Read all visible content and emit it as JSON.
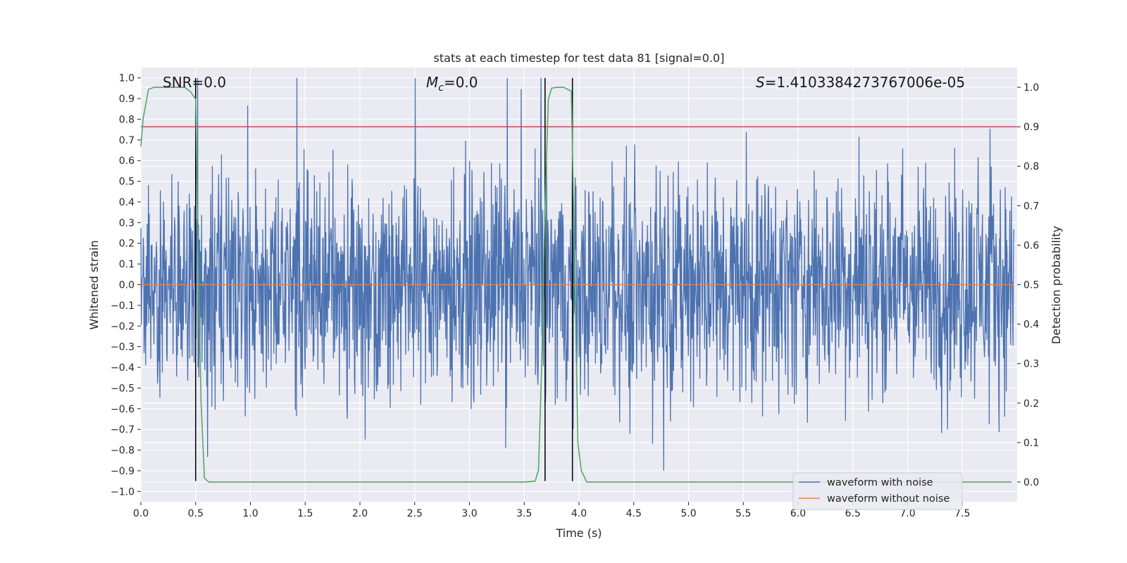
{
  "chart_data": {
    "type": "line",
    "title": "stats at each timestep for test data 81 [signal=0.0]",
    "xlabel": "Time (s)",
    "ylabel": "Whitened strain",
    "y2label": "Detection probability",
    "xlim": [
      0.0,
      8.0
    ],
    "ylim": [
      -1.05,
      1.05
    ],
    "y2lim": [
      -0.05,
      1.05
    ],
    "xticks": [
      0.0,
      0.5,
      1.0,
      1.5,
      2.0,
      2.5,
      3.0,
      3.5,
      4.0,
      4.5,
      5.0,
      5.5,
      6.0,
      6.5,
      7.0,
      7.5
    ],
    "xtick_labels": [
      "0.0",
      "0.5",
      "1.0",
      "1.5",
      "2.0",
      "2.5",
      "3.0",
      "3.5",
      "4.0",
      "4.5",
      "5.0",
      "5.5",
      "6.0",
      "6.5",
      "7.0",
      "7.5"
    ],
    "yticks": [
      1.0,
      0.9,
      0.8,
      0.7,
      0.6,
      0.5,
      0.4,
      0.3,
      0.2,
      0.1,
      0.0,
      -0.1,
      -0.2,
      -0.3,
      -0.4,
      -0.5,
      -0.6,
      -0.7,
      -0.8,
      -0.9,
      -1.0
    ],
    "ytick_labels": [
      "1.0",
      "0.9",
      "0.8",
      "0.7",
      "0.6",
      "0.5",
      "0.4",
      "0.3",
      "0.2",
      "0.1",
      "0.0",
      "−0.1",
      "−0.2",
      "−0.3",
      "−0.4",
      "−0.5",
      "−0.6",
      "−0.7",
      "−0.8",
      "−0.9",
      "−1.0"
    ],
    "y2ticks": [
      1.0,
      0.9,
      0.8,
      0.7,
      0.6,
      0.5,
      0.4,
      0.3,
      0.2,
      0.1,
      0.0
    ],
    "y2tick_labels": [
      "1.0",
      "0.9",
      "0.8",
      "0.7",
      "0.6",
      "0.5",
      "0.4",
      "0.3",
      "0.2",
      "0.1",
      "0.0"
    ],
    "grid": true,
    "legend_position": "bottom-right",
    "series": [
      {
        "name": "waveform with noise",
        "axis": "left",
        "color": "#4c72b0",
        "description_range": [
          -0.9,
          1.0
        ],
        "typical_envelope": [
          -0.4,
          0.45
        ],
        "noise_seed": 81
      },
      {
        "name": "waveform without noise",
        "axis": "left",
        "color": "#dd8452",
        "values_constant": 0.0
      },
      {
        "name": "detection probability",
        "axis": "right",
        "color": "#55a868",
        "x": [
          0.0,
          0.02,
          0.07,
          0.12,
          0.2,
          0.3,
          0.4,
          0.45,
          0.5,
          0.52,
          0.55,
          0.58,
          0.62,
          0.7,
          1.0,
          2.0,
          3.0,
          3.5,
          3.6,
          3.63,
          3.66,
          3.69,
          3.72,
          3.75,
          3.8,
          3.86,
          3.93,
          3.95,
          3.99,
          4.02,
          4.07,
          4.15,
          5.0,
          6.0,
          7.0,
          7.95
        ],
        "y": [
          0.85,
          0.92,
          0.995,
          1.0,
          1.0,
          1.0,
          1.0,
          0.99,
          0.97,
          0.6,
          0.2,
          0.01,
          0.0,
          0.0,
          0.0,
          0.0,
          0.0,
          0.0,
          0.002,
          0.03,
          0.3,
          0.7,
          0.97,
          0.998,
          1.0,
          1.0,
          0.99,
          0.7,
          0.1,
          0.03,
          0.0,
          0.0,
          0.0,
          0.0,
          0.0,
          0.0
        ]
      }
    ],
    "threshold_line": {
      "axis": "right",
      "value": 0.9,
      "color": "#c44e52"
    },
    "vertical_lines": [
      {
        "x": 0.5,
        "ymin": -0.95,
        "ymax": 1.0
      },
      {
        "x": 3.69,
        "ymin": -0.95,
        "ymax": 1.0
      },
      {
        "x": 3.94,
        "ymin": -0.95,
        "ymax": 1.0
      }
    ],
    "annotations": {
      "snr": "SNR=0.0",
      "mc_symbol": "M",
      "mc_sub": "c",
      "mc_value": "=0.0",
      "s_symbol": "S",
      "s_value": "=1.4103384273767006e-05"
    },
    "legend": [
      "waveform with noise",
      "waveform without noise"
    ]
  }
}
